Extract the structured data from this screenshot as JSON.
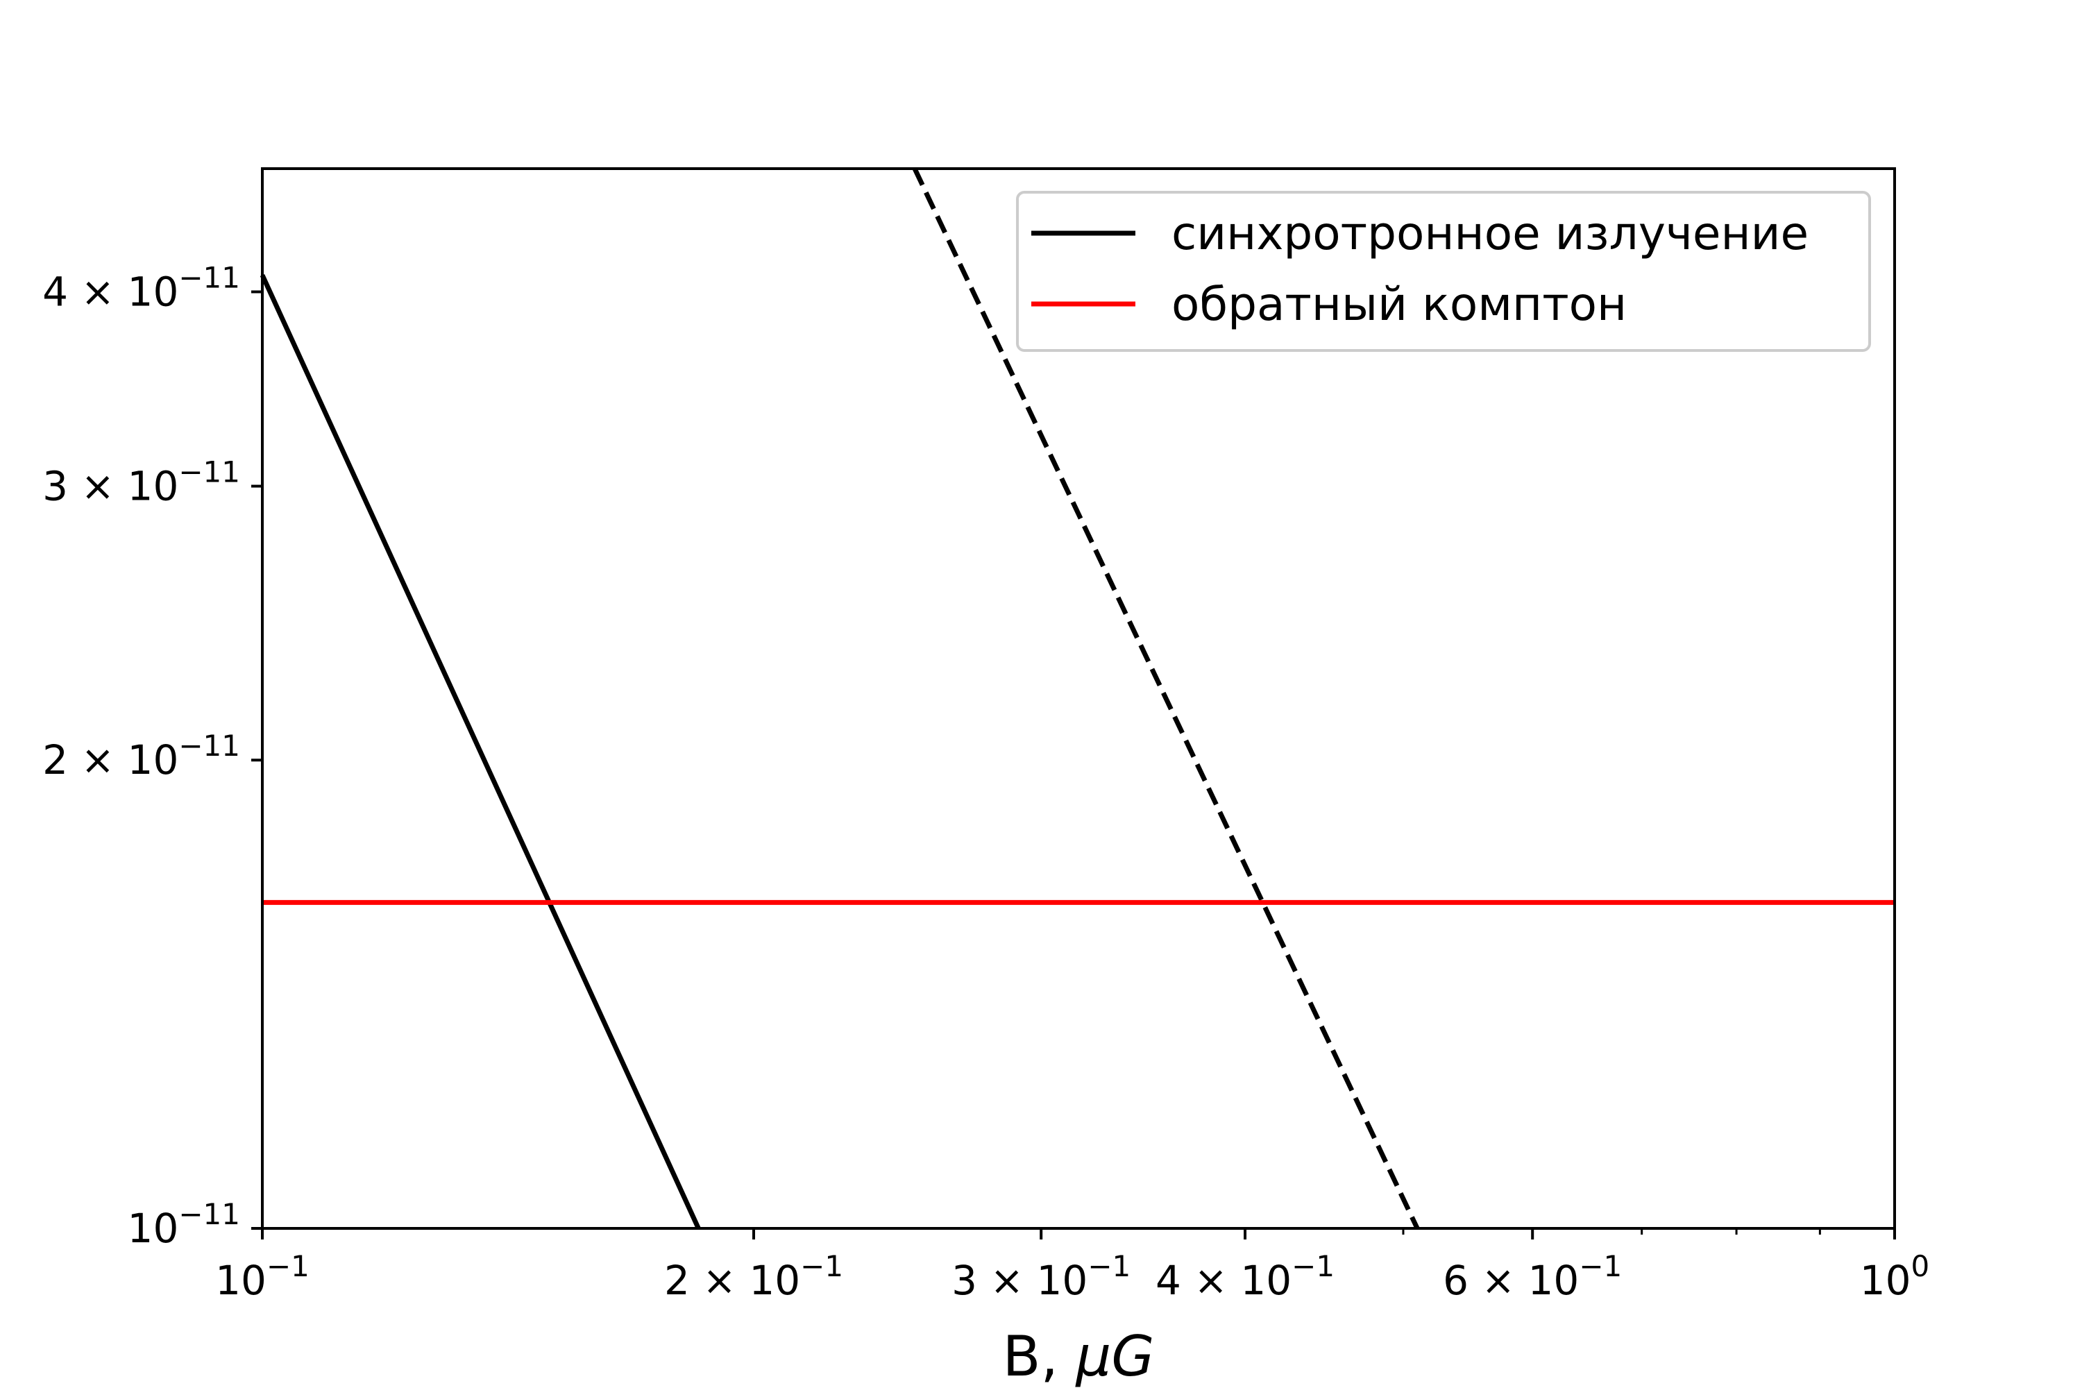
{
  "chart_data": {
    "type": "line",
    "xlabel": "B, μG",
    "xlabel_parts": {
      "text": "B, ",
      "italic": "μG"
    },
    "ylabel": "",
    "xscale": "log",
    "yscale": "log",
    "xlim": [
      0.1,
      1.0
    ],
    "ylim": [
      1e-11,
      4.8e-11
    ],
    "grid": false,
    "legend_position": "top-right",
    "x_ticks": [
      {
        "value": 0.1,
        "mantissa": "",
        "exp": "−1",
        "base": "10"
      },
      {
        "value": 0.2,
        "mantissa": "2 × ",
        "exp": "−1",
        "base": "10"
      },
      {
        "value": 0.3,
        "mantissa": "3 × ",
        "exp": "−1",
        "base": "10"
      },
      {
        "value": 0.4,
        "mantissa": "4 × ",
        "exp": "−1",
        "base": "10"
      },
      {
        "value": 0.6,
        "mantissa": "6 × ",
        "exp": "−1",
        "base": "10"
      },
      {
        "value": 1.0,
        "mantissa": "",
        "exp": "0",
        "base": "10"
      }
    ],
    "x_minor_ticks": [
      0.5,
      0.7,
      0.8,
      0.9
    ],
    "y_ticks": [
      {
        "value": 1e-11,
        "mantissa": "",
        "exp": "−11",
        "base": "10"
      },
      {
        "value": 2e-11,
        "mantissa": "2 × ",
        "exp": "−11",
        "base": "10"
      },
      {
        "value": 3e-11,
        "mantissa": "3 × ",
        "exp": "−11",
        "base": "10"
      },
      {
        "value": 4e-11,
        "mantissa": "4 × ",
        "exp": "−11",
        "base": "10"
      }
    ],
    "y_minor_ticks": [],
    "series": [
      {
        "name": "синхротронное излучение",
        "color": "#000000",
        "style": "solid",
        "x": [
          0.1,
          0.185
        ],
        "y": [
          4.1e-11,
          1e-11
        ]
      },
      {
        "name": "",
        "color": "#000000",
        "style": "dashed",
        "x": [
          0.251,
          0.51
        ],
        "y": [
          4.8e-11,
          1e-11
        ]
      },
      {
        "name": "обратный комптон",
        "color": "#ff0000",
        "style": "solid",
        "x": [
          0.1,
          1.0
        ],
        "y": [
          1.62e-11,
          1.62e-11
        ]
      }
    ],
    "legend": [
      {
        "label": "синхротронное излучение",
        "color": "#000000"
      },
      {
        "label": "обратный комптон",
        "color": "#ff0000"
      }
    ]
  }
}
